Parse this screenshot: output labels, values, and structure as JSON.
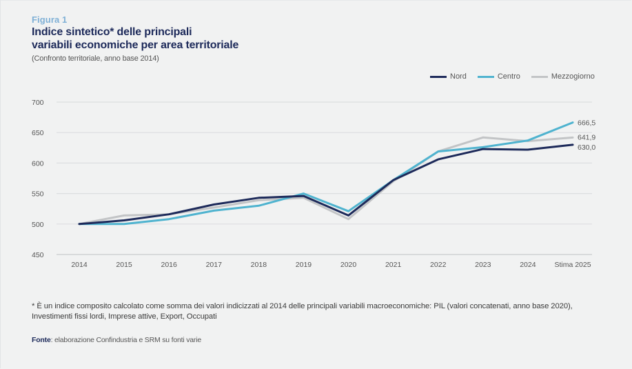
{
  "header": {
    "figure_label": "Figura 1",
    "title_line1": "Indice sintetico* delle principali",
    "title_line2": "variabili economiche per area territoriale",
    "subtitle": "(Confronto territoriale, anno base 2014)"
  },
  "chart_data": {
    "type": "line",
    "title": "Indice sintetico* delle principali variabili economiche per area territoriale",
    "subtitle": "(Confronto territoriale, anno base 2014)",
    "xlabel": "",
    "ylabel": "",
    "categories": [
      "2014",
      "2015",
      "2016",
      "2017",
      "2018",
      "2019",
      "2020",
      "2021",
      "2022",
      "2023",
      "2024",
      "Stima 2025"
    ],
    "ylim": [
      450,
      700
    ],
    "yticks": [
      450,
      500,
      550,
      600,
      650,
      700
    ],
    "grid": true,
    "legend_position": "top-right",
    "series": [
      {
        "name": "Nord",
        "color": "#1d2a5a",
        "values": [
          500,
          506,
          516,
          532,
          543,
          546,
          514,
          572,
          606,
          623,
          622,
          630.0
        ],
        "end_label": "630,0"
      },
      {
        "name": "Centro",
        "color": "#4fb3cf",
        "values": [
          500,
          500,
          508,
          522,
          530,
          550,
          521,
          572,
          619,
          626,
          637,
          666.5
        ],
        "end_label": "666,5"
      },
      {
        "name": "Mezzogiorno",
        "color": "#c2c4c6",
        "values": [
          500,
          514,
          516,
          527,
          539,
          543,
          508,
          570,
          619,
          642,
          636,
          641.9
        ],
        "end_label": "641,9"
      }
    ]
  },
  "footer": {
    "note": "* È un indice composito calcolato come somma dei valori indicizzati al 2014 delle principali variabili macroeconomiche: PIL (valori concatenati, anno base 2020), Investimenti fissi lordi, Imprese attive, Export, Occupati",
    "source_label": "Fonte",
    "source_text": ": elaborazione Confindustria e SRM su fonti varie"
  }
}
